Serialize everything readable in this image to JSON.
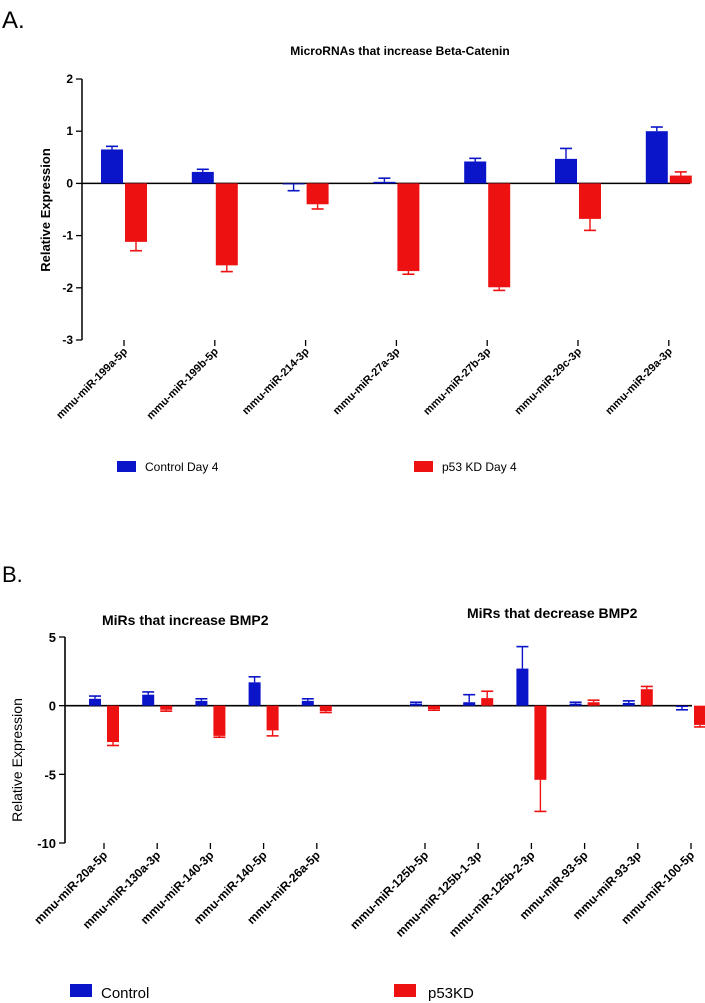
{
  "panels": {
    "a": {
      "label": "A."
    },
    "b": {
      "label": "B."
    }
  },
  "colors": {
    "control": "#0a14c8",
    "p53": "#ee1111",
    "axis": "#000000"
  },
  "chart_data": [
    {
      "type": "bar",
      "title": "MicroRNAs that increase Beta-Catenin",
      "xlabel": "",
      "ylabel": "Relative Expression",
      "ylim": [
        -3,
        2
      ],
      "yticks": [
        -3,
        -2,
        -1,
        0,
        1,
        2
      ],
      "grid": false,
      "legend_position": "bottom",
      "categories": [
        "mmu-miR-199a-5p",
        "mmu-miR-199b-5p",
        "mmu-miR-214-3p",
        "mmu-miR-27a-3p",
        "mmu-miR-27b-3p",
        "mmu-miR-29c-3p",
        "mmu-miR-29a-3p"
      ],
      "series": [
        {
          "name": "Control Day 4",
          "values": [
            0.65,
            0.22,
            -0.02,
            0.03,
            0.42,
            0.47,
            1.0
          ],
          "errors": [
            0.06,
            0.05,
            0.12,
            0.07,
            0.06,
            0.2,
            0.08
          ]
        },
        {
          "name": "p53 KD Day 4",
          "values": [
            -1.12,
            -1.57,
            -0.4,
            -1.68,
            -1.99,
            -0.68,
            0.15
          ],
          "errors": [
            0.17,
            0.12,
            0.09,
            0.06,
            0.06,
            0.22,
            0.07
          ]
        }
      ]
    },
    {
      "type": "bar",
      "title": "",
      "xlabel": "",
      "ylabel": "Relative Expression",
      "ylim": [
        -10,
        5
      ],
      "yticks": [
        -10,
        -5,
        0,
        5
      ],
      "grid": false,
      "legend_position": "bottom",
      "annotations": [
        "MiRs that increase BMP2",
        "MiRs that decrease BMP2"
      ],
      "groups": [
        {
          "name": "MiRs that increase BMP2",
          "categories": [
            "mmu-miR-20a-5p",
            "mmu-miR-130a-3p",
            "mmu-miR-140-3p",
            "mmu-miR-140-5p",
            "mmu-miR-26a-5p"
          ],
          "series": [
            {
              "name": "Control",
              "values": [
                0.5,
                0.8,
                0.35,
                1.7,
                0.35
              ],
              "errors": [
                0.2,
                0.2,
                0.15,
                0.4,
                0.15
              ]
            },
            {
              "name": "p53KD",
              "values": [
                -2.65,
                -0.3,
                -2.2,
                -1.8,
                -0.4
              ],
              "errors": [
                0.25,
                0.1,
                0.1,
                0.4,
                0.1
              ]
            }
          ]
        },
        {
          "name": "MiRs that decrease BMP2",
          "categories": [
            "mmu-miR-125b-5p",
            "mmu-miR-125b-1-3p",
            "mmu-miR-125b-2-3p",
            "mmu-miR-93-5p",
            "mmu-miR-93-3p",
            "mmu-miR-100-5p"
          ],
          "series": [
            {
              "name": "Control",
              "values": [
                0.15,
                0.25,
                2.7,
                0.15,
                0.2,
                -0.1
              ],
              "errors": [
                0.1,
                0.55,
                1.6,
                0.1,
                0.15,
                0.2
              ]
            },
            {
              "name": "p53KD",
              "values": [
                -0.25,
                0.55,
                -5.4,
                0.25,
                1.2,
                -1.4
              ],
              "errors": [
                0.08,
                0.5,
                2.3,
                0.15,
                0.2,
                0.15
              ]
            }
          ]
        }
      ]
    }
  ]
}
